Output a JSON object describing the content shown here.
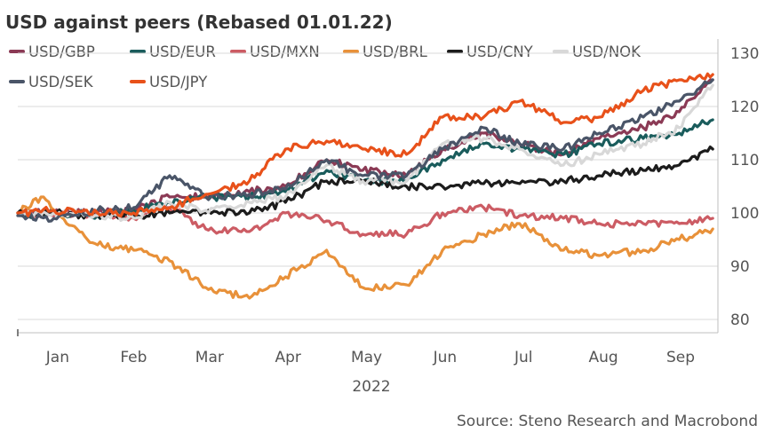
{
  "chart_data": {
    "type": "line",
    "title": "USD against peers (Rebased 01.01.22)",
    "source": "Source: Steno Research and Macrobond",
    "x_axis": {
      "start": "2022-01-01",
      "end": "2022-09-30",
      "ticks": [
        {
          "label": "Jan",
          "date": "2022-01-01"
        },
        {
          "label": "Feb",
          "date": "2022-02-01"
        },
        {
          "label": "Mar",
          "date": "2022-03-01"
        },
        {
          "label": "Apr",
          "date": "2022-04-01"
        },
        {
          "label": "May",
          "date": "2022-05-01"
        },
        {
          "label": "Jun",
          "date": "2022-06-01"
        },
        {
          "label": "Jul",
          "date": "2022-07-01"
        },
        {
          "label": "Aug",
          "date": "2022-08-01"
        },
        {
          "label": "Sep",
          "date": "2022-09-01"
        }
      ],
      "year_label": "2022"
    },
    "y_axis": {
      "min": 80,
      "max": 130,
      "ticks": [
        80,
        90,
        100,
        110,
        120,
        130
      ],
      "position": "right"
    },
    "grid": true,
    "legend_position": "top-left",
    "series": [
      {
        "name": "USD/GBP",
        "color": "#8b3a55",
        "x": [
          "2022-01-01",
          "2022-01-15",
          "2022-02-01",
          "2022-02-15",
          "2022-03-01",
          "2022-03-15",
          "2022-04-01",
          "2022-04-15",
          "2022-05-01",
          "2022-05-15",
          "2022-06-01",
          "2022-06-15",
          "2022-07-01",
          "2022-07-15",
          "2022-08-01",
          "2022-08-15",
          "2022-09-01",
          "2022-09-15",
          "2022-09-28"
        ],
        "y": [
          100,
          100,
          100,
          100.5,
          103,
          103,
          104,
          105,
          110,
          108,
          107,
          112,
          115,
          113,
          111,
          114,
          116,
          119,
          125
        ]
      },
      {
        "name": "USD/EUR",
        "color": "#1a5c5c",
        "x": [
          "2022-01-01",
          "2022-01-15",
          "2022-02-01",
          "2022-02-15",
          "2022-03-01",
          "2022-03-15",
          "2022-04-01",
          "2022-04-15",
          "2022-05-01",
          "2022-05-15",
          "2022-06-01",
          "2022-06-15",
          "2022-07-01",
          "2022-07-15",
          "2022-08-01",
          "2022-08-15",
          "2022-09-01",
          "2022-09-15",
          "2022-09-28"
        ],
        "y": [
          99.5,
          100,
          99.5,
          100.5,
          102,
          103,
          103,
          104,
          108,
          106,
          106,
          110,
          113,
          112,
          111,
          113,
          114,
          115,
          117.5
        ]
      },
      {
        "name": "USD/MXN",
        "color": "#cc5c64",
        "x": [
          "2022-01-01",
          "2022-01-15",
          "2022-02-01",
          "2022-02-15",
          "2022-03-01",
          "2022-03-15",
          "2022-04-01",
          "2022-04-15",
          "2022-05-01",
          "2022-05-15",
          "2022-06-01",
          "2022-06-15",
          "2022-07-01",
          "2022-07-15",
          "2022-08-01",
          "2022-08-15",
          "2022-09-01",
          "2022-09-15",
          "2022-09-28"
        ],
        "y": [
          100,
          99.5,
          100,
          99,
          101,
          97,
          96.5,
          100,
          98.5,
          96,
          96,
          100,
          101,
          99.5,
          99,
          98,
          98,
          98,
          99
        ]
      },
      {
        "name": "USD/BRL",
        "color": "#e8913a",
        "x": [
          "2022-01-01",
          "2022-01-10",
          "2022-01-20",
          "2022-02-01",
          "2022-02-15",
          "2022-03-01",
          "2022-03-15",
          "2022-04-01",
          "2022-04-15",
          "2022-05-01",
          "2022-05-15",
          "2022-06-01",
          "2022-06-15",
          "2022-07-01",
          "2022-07-15",
          "2022-08-01",
          "2022-08-15",
          "2022-09-01",
          "2022-09-15",
          "2022-09-28"
        ],
        "y": [
          100,
          103,
          98,
          94,
          93,
          91,
          86,
          84,
          88,
          93,
          86,
          86.5,
          93,
          96,
          98,
          93,
          92,
          93,
          95,
          97
        ]
      },
      {
        "name": "USD/CNY",
        "color": "#1c1c1c",
        "x": [
          "2022-01-01",
          "2022-01-15",
          "2022-02-01",
          "2022-02-15",
          "2022-03-01",
          "2022-03-15",
          "2022-04-01",
          "2022-04-15",
          "2022-05-01",
          "2022-05-15",
          "2022-06-01",
          "2022-06-15",
          "2022-07-01",
          "2022-07-15",
          "2022-08-01",
          "2022-08-15",
          "2022-09-01",
          "2022-09-15",
          "2022-09-28"
        ],
        "y": [
          100,
          100,
          99.5,
          99.5,
          100,
          100,
          100,
          102,
          106,
          106,
          105,
          105,
          105.5,
          105.5,
          106,
          107,
          108,
          109,
          112
        ]
      },
      {
        "name": "USD/NOK",
        "color": "#d8d8d8",
        "x": [
          "2022-01-01",
          "2022-01-15",
          "2022-02-01",
          "2022-02-15",
          "2022-03-01",
          "2022-03-15",
          "2022-04-01",
          "2022-04-15",
          "2022-05-01",
          "2022-05-15",
          "2022-06-01",
          "2022-06-15",
          "2022-07-01",
          "2022-07-15",
          "2022-08-01",
          "2022-08-15",
          "2022-09-01",
          "2022-09-15",
          "2022-09-28"
        ],
        "y": [
          99.5,
          100,
          99.5,
          99,
          102,
          100.5,
          102,
          103,
          109,
          106,
          106,
          113,
          114,
          112,
          109,
          111,
          113,
          116,
          124
        ]
      },
      {
        "name": "USD/SEK",
        "color": "#4a5568",
        "x": [
          "2022-01-01",
          "2022-01-15",
          "2022-02-01",
          "2022-02-15",
          "2022-03-01",
          "2022-03-15",
          "2022-04-01",
          "2022-04-15",
          "2022-05-01",
          "2022-05-15",
          "2022-06-01",
          "2022-06-15",
          "2022-07-01",
          "2022-07-15",
          "2022-08-01",
          "2022-08-15",
          "2022-09-01",
          "2022-09-15",
          "2022-09-28"
        ],
        "y": [
          99.5,
          99,
          100.5,
          101,
          107,
          103,
          103.5,
          104.5,
          110,
          107,
          107,
          112,
          116,
          113,
          112,
          115,
          118,
          121,
          125
        ]
      },
      {
        "name": "USD/JPY",
        "color": "#e8511a",
        "x": [
          "2022-01-01",
          "2022-01-15",
          "2022-02-01",
          "2022-02-15",
          "2022-03-01",
          "2022-03-15",
          "2022-04-01",
          "2022-04-15",
          "2022-05-01",
          "2022-05-15",
          "2022-06-01",
          "2022-06-15",
          "2022-07-01",
          "2022-07-15",
          "2022-08-01",
          "2022-08-15",
          "2022-09-01",
          "2022-09-15",
          "2022-09-28"
        ],
        "y": [
          100,
          100.5,
          100,
          100,
          101,
          103.5,
          106,
          112,
          113.5,
          112,
          111,
          118,
          118,
          121,
          117,
          118,
          123,
          125,
          126
        ]
      }
    ]
  }
}
